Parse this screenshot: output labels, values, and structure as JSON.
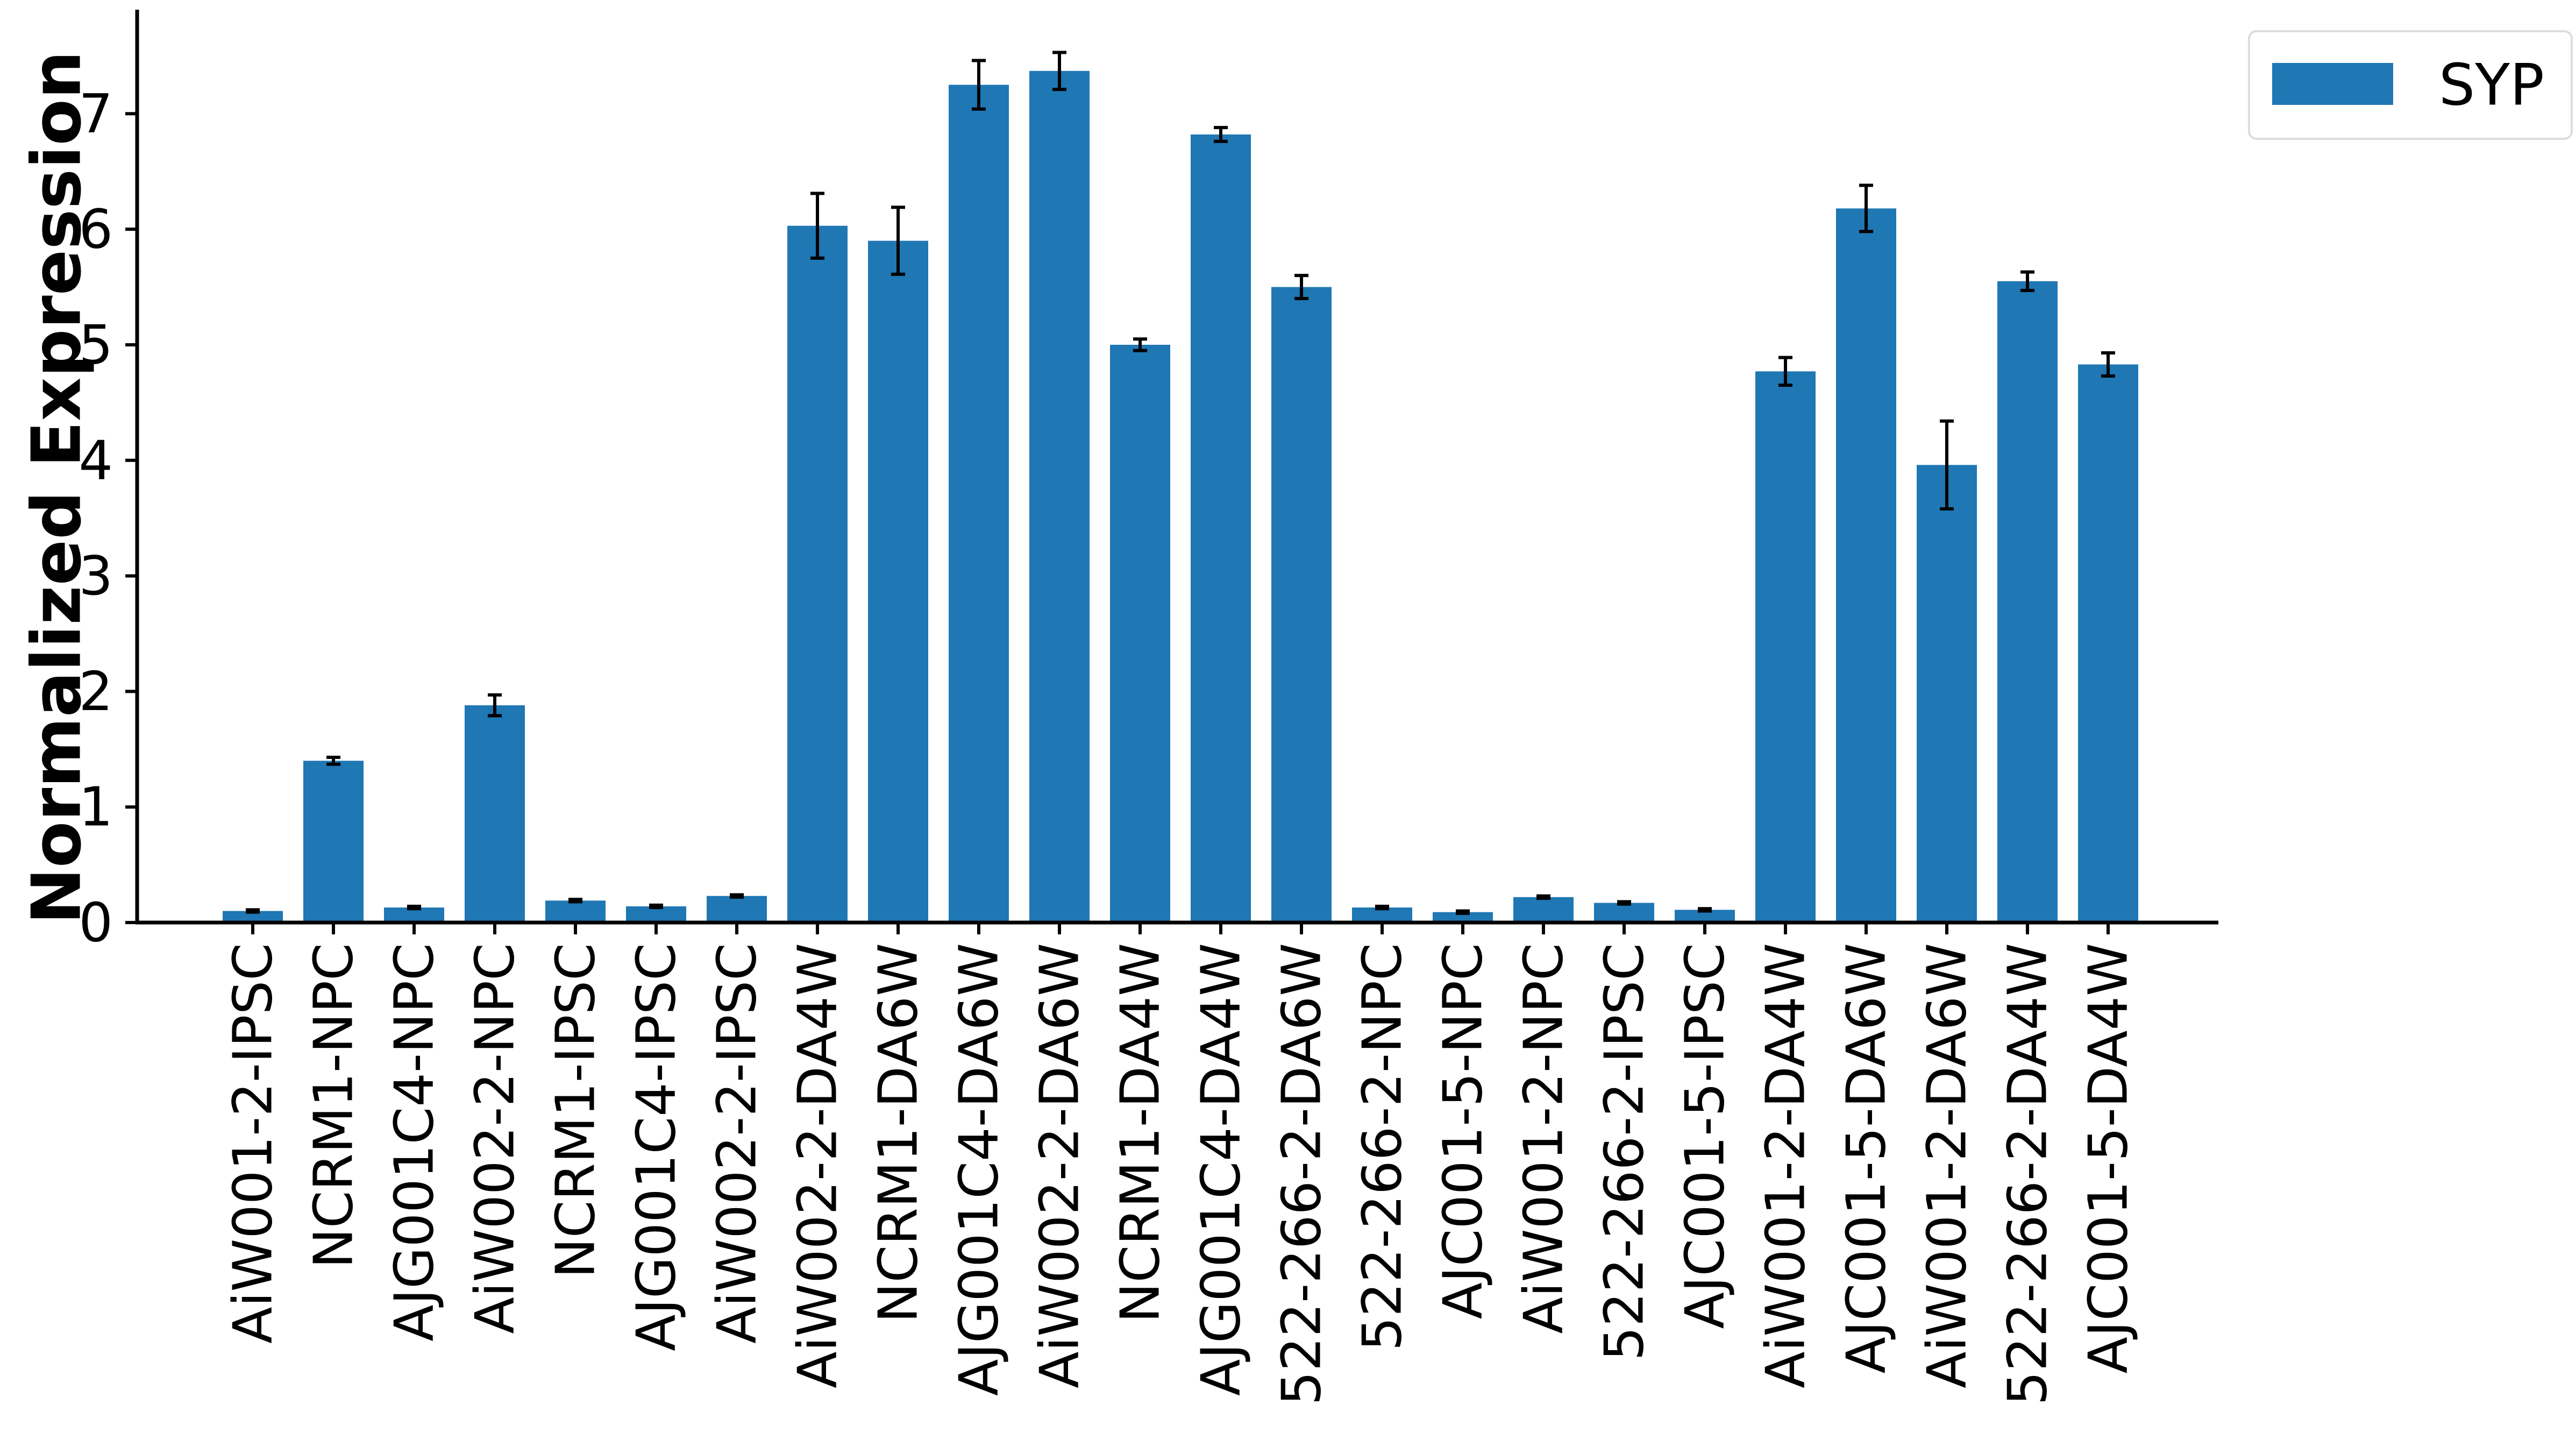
{
  "chart_data": {
    "type": "bar",
    "ylabel": "Normalized Expression",
    "xlabel": "",
    "title": "",
    "ylim": [
      0,
      7.9
    ],
    "yticks": [
      0,
      1,
      2,
      3,
      4,
      5,
      6,
      7
    ],
    "ytick_labels": [
      "0",
      "1",
      "2",
      "3",
      "4",
      "5",
      "6",
      "7"
    ],
    "grid": false,
    "legend_position": "top-right",
    "categories": [
      "AiW001-2-IPSC",
      "NCRM1-NPC",
      "AJG001C4-NPC",
      "AiW002-2-NPC",
      "NCRM1-IPSC",
      "AJG001C4-IPSC",
      "AiW002-2-IPSC",
      "AiW002-2-DA4W",
      "NCRM1-DA6W",
      "AJG001C4-DA6W",
      "AiW002-2-DA6W",
      "NCRM1-DA4W",
      "AJG001C4-DA4W",
      "522-266-2-DA6W",
      "522-266-2-NPC",
      "AJC001-5-NPC",
      "AiW001-2-NPC",
      "522-266-2-IPSC",
      "AJC001-5-IPSC",
      "AiW001-2-DA4W",
      "AJC001-5-DA6W",
      "AiW001-2-DA6W",
      "522-266-2-DA4W",
      "AJC001-5-DA4W"
    ],
    "series": [
      {
        "name": "SYP",
        "color": "#1f77b4",
        "values": [
          0.1,
          1.4,
          0.13,
          1.88,
          0.19,
          0.14,
          0.23,
          6.03,
          5.9,
          7.25,
          7.37,
          5.0,
          6.82,
          5.5,
          0.13,
          0.09,
          0.22,
          0.17,
          0.11,
          4.77,
          6.18,
          3.96,
          5.55,
          4.83
        ],
        "errors": [
          0.01,
          0.03,
          0.01,
          0.09,
          0.01,
          0.01,
          0.01,
          0.28,
          0.29,
          0.21,
          0.16,
          0.05,
          0.06,
          0.1,
          0.01,
          0.01,
          0.01,
          0.01,
          0.01,
          0.12,
          0.2,
          0.38,
          0.08,
          0.1
        ]
      }
    ]
  }
}
